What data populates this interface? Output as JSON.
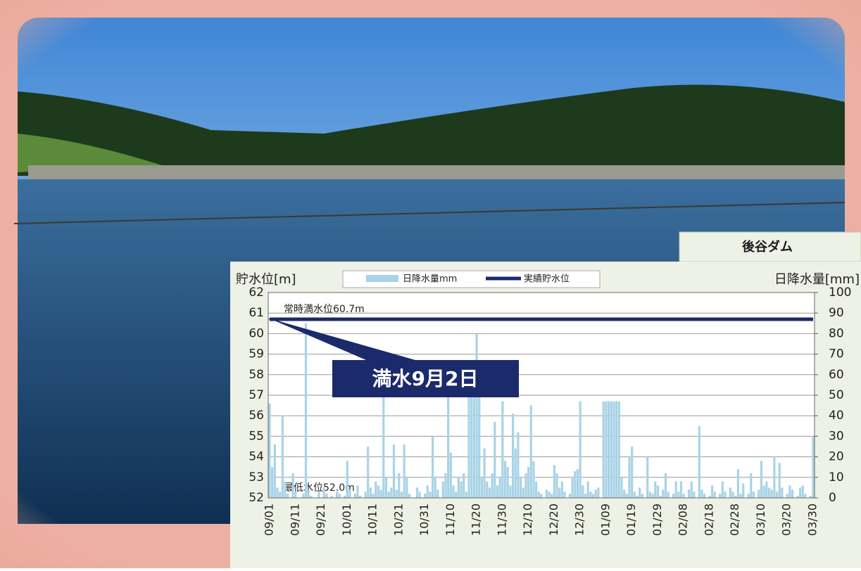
{
  "chart_data": {
    "type": "bar-line",
    "panel_title": "後谷ダム",
    "y_label": "貯水位[m]",
    "y2_label": "日降水量[mm]",
    "ylim": [
      52,
      62
    ],
    "yticks": [
      52,
      53,
      54,
      55,
      56,
      57,
      58,
      59,
      60,
      61,
      62
    ],
    "y2lim": [
      0,
      100
    ],
    "y2ticks": [
      0,
      10,
      20,
      30,
      40,
      50,
      60,
      70,
      80,
      90,
      100
    ],
    "grid": true,
    "reference_lines": [
      {
        "label": "常時満水位60.7m",
        "value": 60.7
      },
      {
        "label": "最低水位52.0m",
        "value": 52.0
      }
    ],
    "annotations": [
      {
        "text": "満水9月2日"
      }
    ],
    "categories": [
      "09/01",
      null,
      null,
      null,
      null,
      null,
      null,
      null,
      null,
      null,
      "09/11",
      null,
      null,
      null,
      null,
      null,
      null,
      null,
      null,
      null,
      "09/21",
      null,
      null,
      null,
      null,
      null,
      null,
      null,
      null,
      null,
      "10/01",
      null,
      null,
      null,
      null,
      null,
      null,
      null,
      null,
      null,
      "10/11",
      null,
      null,
      null,
      null,
      null,
      null,
      null,
      null,
      null,
      "10/21",
      null,
      null,
      null,
      null,
      null,
      null,
      null,
      null,
      null,
      "10/31",
      null,
      null,
      null,
      null,
      null,
      null,
      null,
      null,
      null,
      "11/10",
      null,
      null,
      null,
      null,
      null,
      null,
      null,
      null,
      null,
      "11/20",
      null,
      null,
      null,
      null,
      null,
      null,
      null,
      null,
      null,
      "11/30",
      null,
      null,
      null,
      null,
      null,
      null,
      null,
      null,
      null,
      "12/10",
      null,
      null,
      null,
      null,
      null,
      null,
      null,
      null,
      null,
      "12/20",
      null,
      null,
      null,
      null,
      null,
      null,
      null,
      null,
      null,
      "12/30",
      null,
      null,
      null,
      null,
      null,
      null,
      null,
      null,
      null,
      "01/09",
      null,
      null,
      null,
      null,
      null,
      null,
      null,
      null,
      null,
      "01/19",
      null,
      null,
      null,
      null,
      null,
      null,
      null,
      null,
      null,
      "01/29",
      null,
      null,
      null,
      null,
      null,
      null,
      null,
      null,
      null,
      "02/08",
      null,
      null,
      null,
      null,
      null,
      null,
      null,
      null,
      null,
      "02/18",
      null,
      null,
      null,
      null,
      null,
      null,
      null,
      null,
      null,
      "02/28",
      null,
      null,
      null,
      null,
      null,
      null,
      null,
      null,
      null,
      "03/10",
      null,
      null,
      null,
      null,
      null,
      null,
      null,
      null,
      null,
      "03/20",
      null,
      null,
      null,
      null,
      null,
      null,
      null,
      null,
      null,
      "03/30"
    ],
    "series": [
      {
        "name": "日降水量mm",
        "color": "#a9d3e6",
        "axis": "y2",
        "values": [
          46,
          15,
          26,
          5,
          3,
          40,
          8,
          2,
          0,
          12,
          3,
          0,
          0,
          2,
          85,
          4,
          1,
          0,
          0,
          3,
          0,
          5,
          2,
          0,
          1,
          0,
          3,
          2,
          0,
          1,
          18,
          4,
          0,
          2,
          6,
          1,
          0,
          3,
          25,
          5,
          2,
          8,
          6,
          4,
          70,
          10,
          3,
          5,
          26,
          4,
          12,
          3,
          26,
          10,
          2,
          0,
          0,
          5,
          3,
          0,
          2,
          6,
          3,
          30,
          10,
          4,
          0,
          8,
          12,
          60,
          22,
          6,
          3,
          10,
          8,
          12,
          3,
          50,
          50,
          50,
          80,
          50,
          10,
          24,
          8,
          5,
          12,
          37,
          6,
          10,
          47,
          18,
          15,
          6,
          41,
          24,
          32,
          10,
          5,
          12,
          15,
          45,
          18,
          8,
          3,
          2,
          0,
          4,
          3,
          2,
          16,
          12,
          5,
          8,
          3,
          0,
          2,
          10,
          13,
          14,
          47,
          6,
          2,
          8,
          3,
          2,
          4,
          5,
          0,
          47,
          47,
          47,
          47,
          47,
          47,
          47,
          10,
          4,
          2,
          20,
          25,
          3,
          1,
          5,
          2,
          0,
          20,
          3,
          2,
          8,
          6,
          1,
          4,
          12,
          3,
          0,
          2,
          8,
          3,
          8,
          2,
          0,
          4,
          8,
          3,
          0,
          35,
          4,
          2,
          0,
          1,
          6,
          3,
          0,
          2,
          8,
          3,
          0,
          5,
          3,
          1,
          14,
          2,
          7,
          0,
          2,
          12,
          3,
          0,
          4,
          18,
          6,
          8,
          5,
          4,
          20,
          3,
          17,
          5,
          0,
          2,
          6,
          4,
          0,
          1,
          5,
          6,
          2,
          0,
          1,
          30
        ]
      },
      {
        "name": "実績貯水位",
        "color": "#1b2a6b",
        "values": [
          60.7,
          60.7,
          60.7,
          60.7,
          60.7,
          60.7,
          60.7,
          60.7,
          60.7,
          60.7,
          60.7,
          60.7,
          60.7,
          60.7,
          60.7,
          60.7,
          60.7,
          60.7,
          60.7,
          60.7,
          60.7,
          60.7,
          60.7,
          60.7,
          60.7,
          60.7,
          60.7,
          60.7,
          60.7,
          60.7,
          60.7,
          60.7,
          60.7,
          60.7,
          60.7,
          60.7,
          60.7,
          60.7,
          60.7,
          60.7,
          60.7,
          60.7,
          60.7,
          60.7,
          60.7,
          60.7,
          60.7,
          60.7,
          60.7,
          60.7,
          60.7,
          60.7,
          60.7,
          60.7,
          60.7,
          60.7,
          60.7,
          60.7,
          60.7,
          60.7,
          60.7,
          60.7,
          60.7,
          60.7,
          60.7,
          60.7,
          60.7,
          60.7,
          60.7,
          60.7,
          60.7,
          60.7,
          60.7,
          60.7,
          60.7,
          60.7,
          60.7,
          60.7,
          60.7,
          60.7,
          60.7,
          60.7,
          60.7,
          60.7,
          60.7,
          60.7,
          60.7,
          60.7,
          60.7,
          60.7,
          60.7,
          60.7,
          60.7,
          60.7,
          60.7,
          60.7,
          60.7,
          60.7,
          60.7,
          60.7,
          60.7,
          60.7,
          60.7,
          60.7,
          60.7,
          60.7,
          60.7,
          60.7,
          60.7,
          60.7,
          60.7,
          60.7,
          60.7,
          60.7,
          60.7,
          60.7,
          60.7,
          60.7,
          60.7,
          60.7,
          60.7,
          60.7,
          60.7,
          60.7,
          60.7,
          60.7,
          60.7,
          60.7,
          60.7,
          60.7,
          60.7,
          60.7,
          60.7,
          60.7,
          60.7,
          60.7,
          60.7,
          60.7,
          60.7,
          60.7,
          60.7,
          60.7,
          60.7,
          60.7,
          60.7,
          60.7,
          60.7,
          60.7,
          60.7,
          60.7,
          60.7,
          60.7,
          60.7,
          60.7,
          60.7,
          60.7,
          60.7,
          60.7,
          60.7,
          60.7,
          60.7,
          60.7,
          60.7,
          60.7,
          60.7,
          60.7,
          60.7,
          60.7,
          60.7,
          60.7,
          60.7,
          60.7,
          60.7,
          60.7,
          60.7,
          60.7,
          60.7,
          60.7,
          60.7,
          60.7,
          60.7,
          60.7,
          60.7,
          60.7,
          60.7,
          60.7,
          60.7,
          60.7,
          60.7,
          60.7,
          60.7,
          60.7,
          60.7,
          60.7,
          60.7,
          60.7,
          60.7,
          60.7,
          60.7,
          60.7,
          60.7,
          60.7,
          60.7,
          60.7,
          60.7,
          60.7,
          60.7,
          60.7,
          60.7,
          60.7,
          60.7
        ]
      }
    ]
  }
}
